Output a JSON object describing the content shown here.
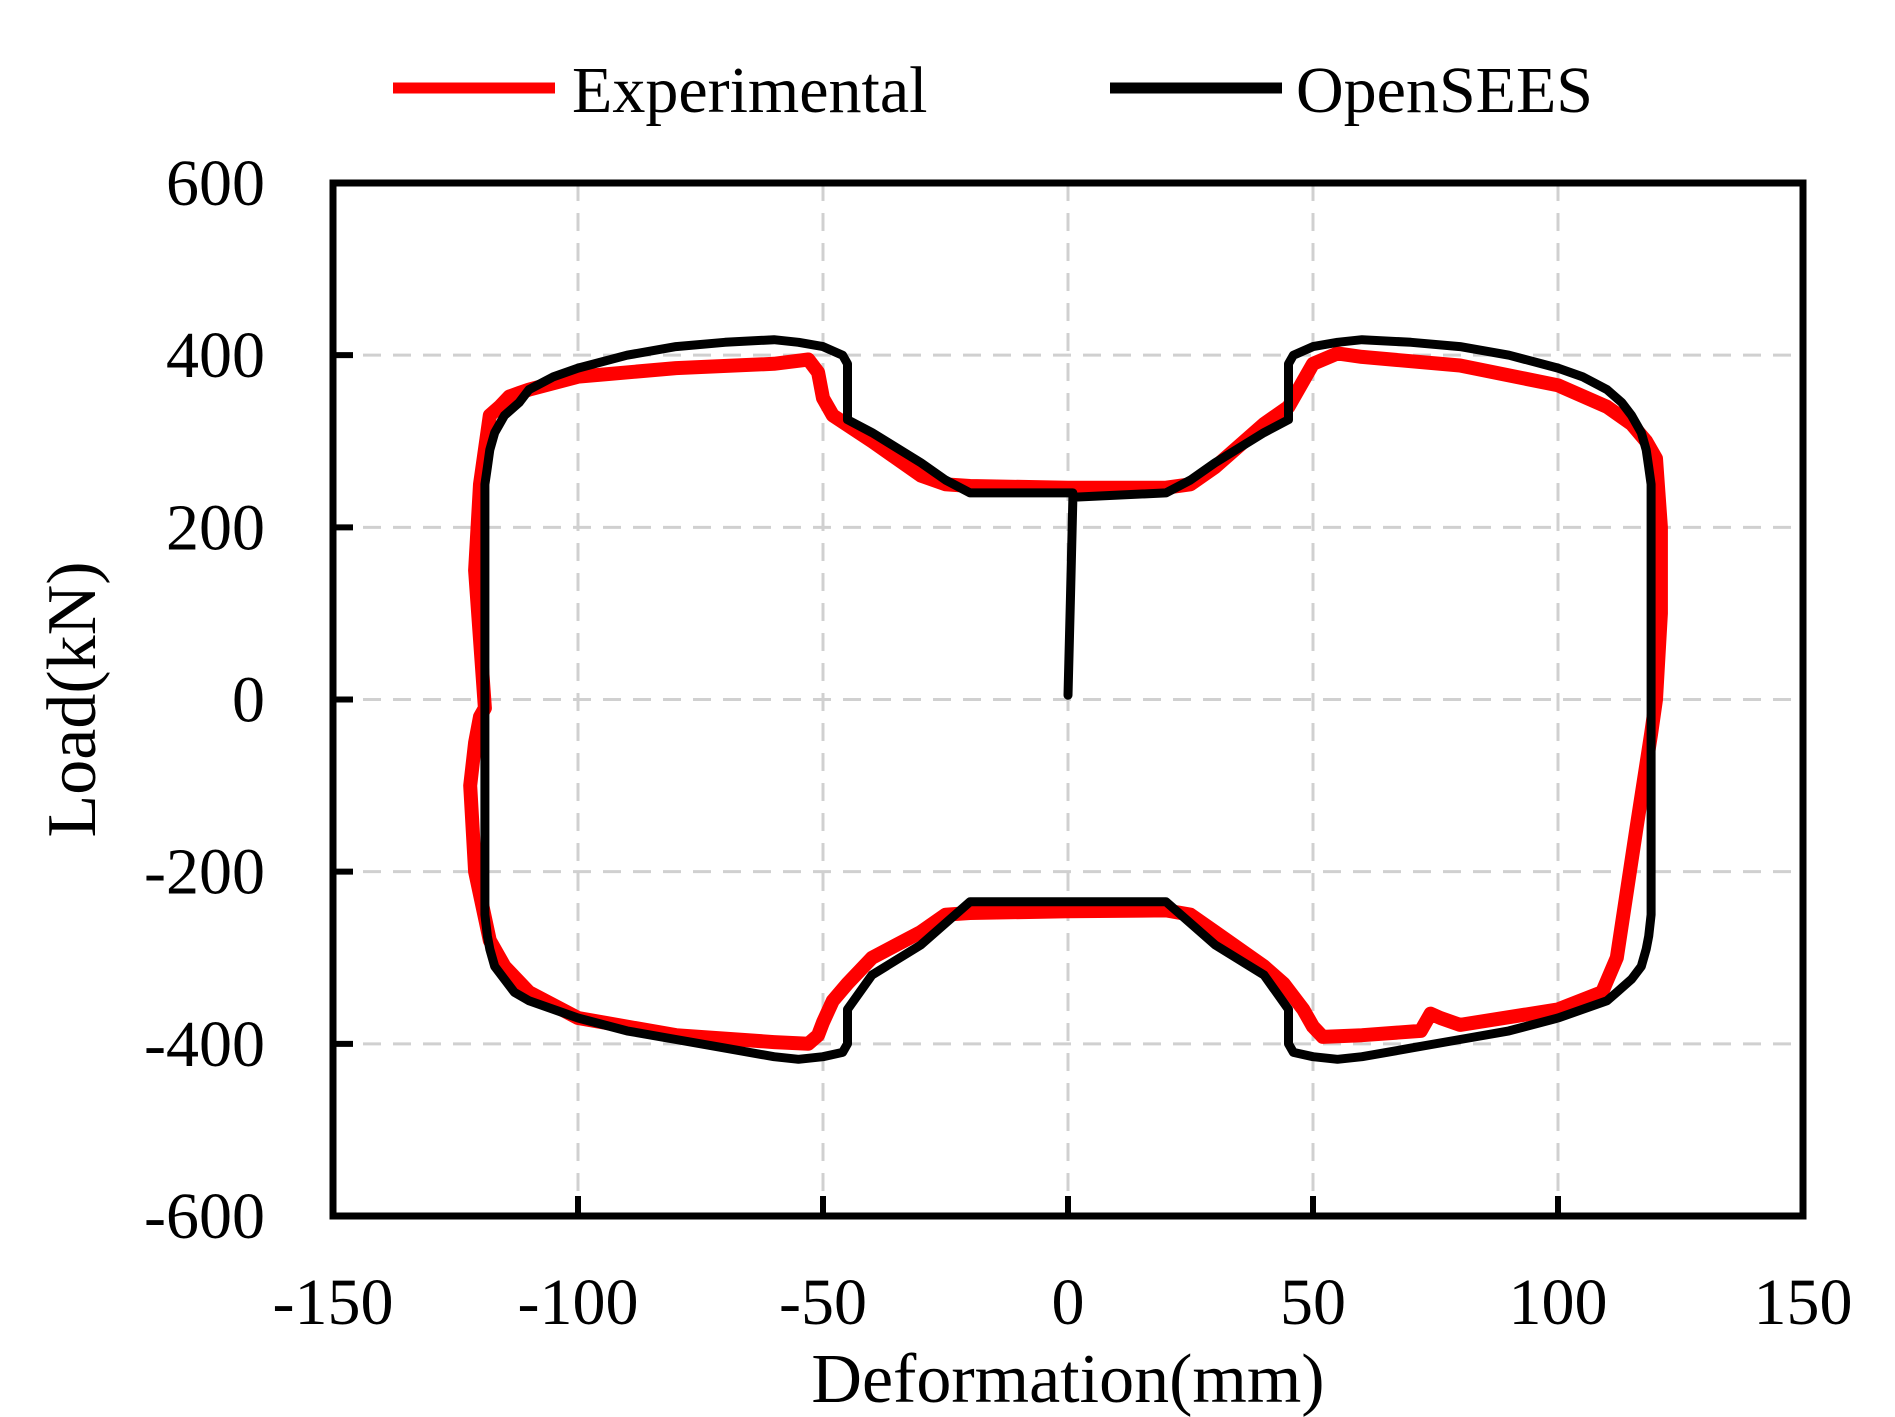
{
  "chart_data": {
    "type": "line",
    "xlabel": "Deformation(mm)",
    "ylabel": "Load(kN)",
    "xlim": [
      -150,
      150
    ],
    "ylim": [
      -600,
      600
    ],
    "xticks": [
      "-150",
      "-100",
      "-50",
      "0",
      "50",
      "100",
      "150"
    ],
    "yticks": [
      "600",
      "400",
      "200",
      "0",
      "-200",
      "-400",
      "-600"
    ],
    "grid": true,
    "legend_position": "top",
    "series": [
      {
        "name": "Experimental",
        "color": "#ff0000",
        "x": [
          -119,
          -121,
          -120,
          -118,
          -116,
          -114,
          -112,
          -110,
          -100,
          -80,
          -60,
          -53,
          -51,
          -50,
          -48,
          -40,
          -30,
          -25,
          -20,
          0,
          20,
          25,
          30,
          40,
          45,
          48,
          50,
          55,
          60,
          80,
          100,
          110,
          115,
          118,
          120,
          121,
          121,
          120,
          119,
          116,
          112,
          109,
          100,
          80,
          76,
          74,
          72,
          60,
          52,
          50,
          48,
          44,
          40,
          30,
          25,
          20,
          0,
          -20,
          -25,
          -30,
          -40,
          -45,
          -48,
          -50,
          -51,
          -53,
          -60,
          -80,
          -100,
          -110,
          -115,
          -118,
          -121,
          -122,
          -121,
          -120,
          -119
        ],
        "y": [
          -10,
          150,
          250,
          330,
          340,
          352,
          356,
          360,
          375,
          385,
          390,
          395,
          380,
          350,
          330,
          300,
          260,
          250,
          248,
          246,
          246,
          250,
          270,
          320,
          340,
          370,
          390,
          402,
          398,
          388,
          365,
          340,
          320,
          300,
          280,
          200,
          100,
          0,
          -40,
          -150,
          -300,
          -340,
          -360,
          -378,
          -370,
          -365,
          -385,
          -390,
          -392,
          -380,
          -360,
          -330,
          -310,
          -270,
          -250,
          -245,
          -246,
          -248,
          -250,
          -270,
          -300,
          -330,
          -350,
          -375,
          -390,
          -400,
          -398,
          -390,
          -370,
          -340,
          -310,
          -280,
          -200,
          -100,
          -50,
          -20,
          -10
        ]
      },
      {
        "name": "OpenSEES",
        "color": "#000000",
        "x": [
          0,
          0.5,
          1,
          20,
          25,
          30,
          40,
          45,
          45,
          46,
          50,
          55,
          60,
          70,
          80,
          90,
          100,
          105,
          110,
          113,
          115,
          117,
          118,
          118.5,
          119,
          119,
          119,
          118.5,
          118,
          117,
          115,
          112,
          110,
          105,
          100,
          90,
          80,
          70,
          60,
          55,
          50,
          46,
          45,
          45,
          40,
          30,
          25,
          20,
          -20,
          -25,
          -30,
          -40,
          -45,
          -45,
          -46,
          -50,
          -55,
          -60,
          -70,
          -80,
          -90,
          -100,
          -105,
          -110,
          -113,
          -115,
          -117,
          -118,
          -118.5,
          -119,
          -119,
          -119,
          -118.5,
          -118,
          -117,
          -115,
          -112,
          -110,
          -105,
          -100,
          -90,
          -80,
          -70,
          -60,
          -55,
          -50,
          -46,
          -45,
          -45,
          -40,
          -30,
          -25,
          -20,
          1
        ],
        "y": [
          5,
          120,
          235,
          240,
          255,
          275,
          310,
          325,
          390,
          400,
          410,
          415,
          418,
          415,
          410,
          400,
          385,
          375,
          360,
          345,
          330,
          310,
          290,
          270,
          250,
          0,
          -250,
          -275,
          -290,
          -310,
          -325,
          -340,
          -350,
          -360,
          -370,
          -385,
          -395,
          -405,
          -415,
          -418,
          -415,
          -410,
          -400,
          -360,
          -320,
          -285,
          -260,
          -235,
          -235,
          -260,
          -285,
          -320,
          -360,
          -400,
          -410,
          -415,
          -418,
          -415,
          -405,
          -395,
          -385,
          -370,
          -360,
          -350,
          -340,
          -325,
          -310,
          -290,
          -275,
          -250,
          0,
          250,
          270,
          290,
          310,
          330,
          345,
          360,
          375,
          385,
          400,
          410,
          415,
          418,
          415,
          410,
          400,
          390,
          325,
          310,
          275,
          255,
          240,
          240
        ]
      }
    ]
  }
}
